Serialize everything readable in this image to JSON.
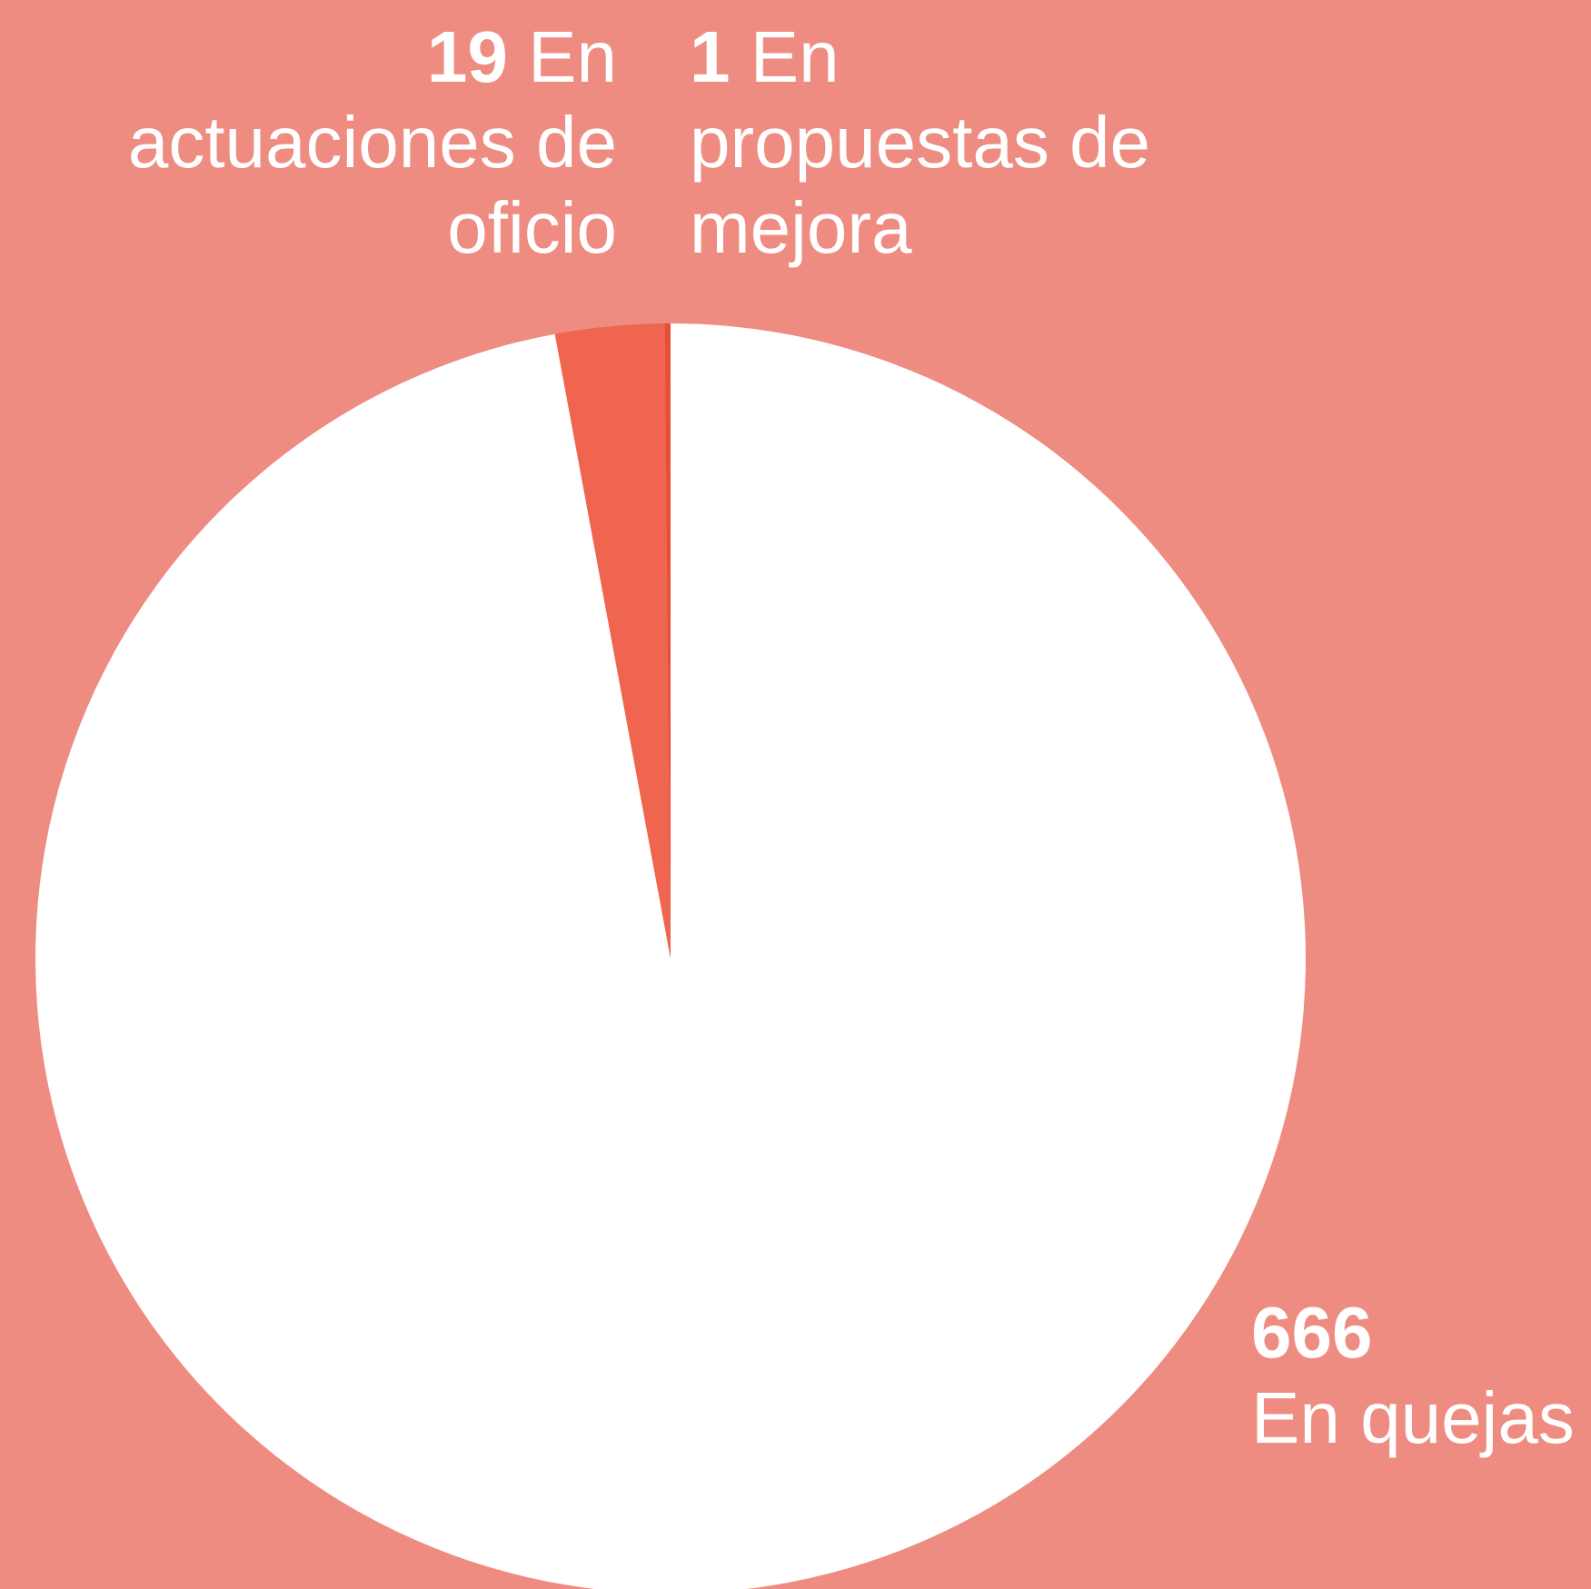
{
  "chart_data": {
    "type": "pie",
    "categories": [
      "En quejas",
      "En actuaciones de oficio",
      "En propuestas de mejora"
    ],
    "values": [
      666,
      19,
      1
    ],
    "colors": [
      "#ffffff",
      "#f0654f",
      "#e84f38"
    ],
    "background": "#ee8c82"
  }
}
